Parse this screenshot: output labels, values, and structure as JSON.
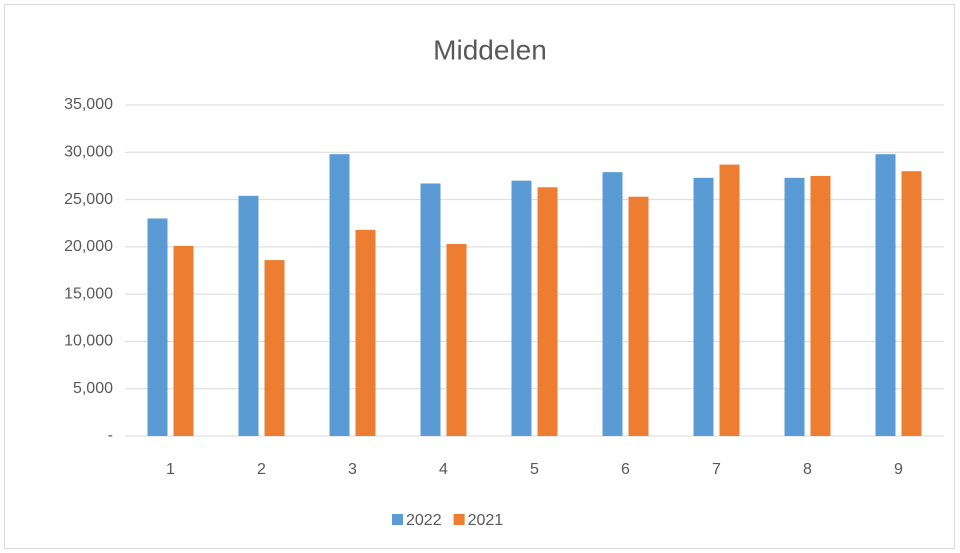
{
  "chart_data": {
    "type": "bar",
    "title": "Middelen",
    "categories": [
      "1",
      "2",
      "3",
      "4",
      "5",
      "6",
      "7",
      "8",
      "9"
    ],
    "series": [
      {
        "name": "2022",
        "color": "#5b9bd5",
        "values": [
          23000,
          25400,
          29800,
          26700,
          27000,
          27900,
          27300,
          27300,
          29800
        ]
      },
      {
        "name": "2021",
        "color": "#ed7d31",
        "values": [
          20100,
          18600,
          21800,
          20300,
          26300,
          25300,
          28700,
          27500,
          28000
        ]
      }
    ],
    "ylim": [
      0,
      35000
    ],
    "yticks": [
      {
        "value": 0,
        "label": "-"
      },
      {
        "value": 5000,
        "label": "5,000"
      },
      {
        "value": 10000,
        "label": "10,000"
      },
      {
        "value": 15000,
        "label": "15,000"
      },
      {
        "value": 20000,
        "label": "20,000"
      },
      {
        "value": 25000,
        "label": "25,000"
      },
      {
        "value": 30000,
        "label": "30,000"
      },
      {
        "value": 35000,
        "label": "35,000"
      }
    ],
    "grid": true,
    "legend": "bottom"
  }
}
